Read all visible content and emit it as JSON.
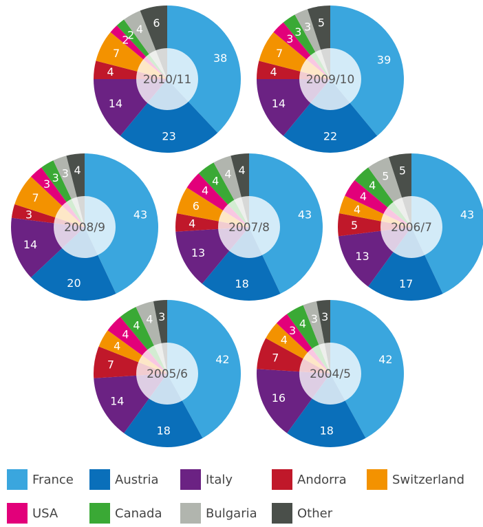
{
  "chart_data": [
    {
      "type": "pie",
      "title": "2010/11",
      "categories": [
        "France",
        "Austria",
        "Italy",
        "Andorra",
        "Switzerland",
        "USA",
        "Canada",
        "Bulgaria",
        "Other"
      ],
      "colors": [
        "#3aa6de",
        "#0a6fba",
        "#6b2283",
        "#c0182a",
        "#f39200",
        "#e2007a",
        "#3aa935",
        "#b1b5ae",
        "#4a4f4a"
      ],
      "values": [
        38,
        23,
        14,
        4,
        7,
        2,
        2,
        4,
        6
      ]
    },
    {
      "type": "pie",
      "title": "2009/10",
      "categories": [
        "France",
        "Austria",
        "Italy",
        "Andorra",
        "Switzerland",
        "USA",
        "Canada",
        "Bulgaria",
        "Other"
      ],
      "colors": [
        "#3aa6de",
        "#0a6fba",
        "#6b2283",
        "#c0182a",
        "#f39200",
        "#e2007a",
        "#3aa935",
        "#b1b5ae",
        "#4a4f4a"
      ],
      "values": [
        39,
        22,
        14,
        4,
        7,
        3,
        3,
        3,
        5
      ]
    },
    {
      "type": "pie",
      "title": "2008/9",
      "categories": [
        "France",
        "Austria",
        "Italy",
        "Andorra",
        "Switzerland",
        "USA",
        "Canada",
        "Bulgaria",
        "Other"
      ],
      "colors": [
        "#3aa6de",
        "#0a6fba",
        "#6b2283",
        "#c0182a",
        "#f39200",
        "#e2007a",
        "#3aa935",
        "#b1b5ae",
        "#4a4f4a"
      ],
      "values": [
        43,
        20,
        14,
        3,
        7,
        3,
        3,
        3,
        4
      ]
    },
    {
      "type": "pie",
      "title": "2007/8",
      "categories": [
        "France",
        "Austria",
        "Italy",
        "Andorra",
        "Switzerland",
        "USA",
        "Canada",
        "Bulgaria",
        "Other"
      ],
      "colors": [
        "#3aa6de",
        "#0a6fba",
        "#6b2283",
        "#c0182a",
        "#f39200",
        "#e2007a",
        "#3aa935",
        "#b1b5ae",
        "#4a4f4a"
      ],
      "values": [
        43,
        18,
        13,
        4,
        6,
        4,
        4,
        4,
        4
      ]
    },
    {
      "type": "pie",
      "title": "2006/7",
      "categories": [
        "France",
        "Austria",
        "Italy",
        "Andorra",
        "Switzerland",
        "USA",
        "Canada",
        "Bulgaria",
        "Other"
      ],
      "colors": [
        "#3aa6de",
        "#0a6fba",
        "#6b2283",
        "#c0182a",
        "#f39200",
        "#e2007a",
        "#3aa935",
        "#b1b5ae",
        "#4a4f4a"
      ],
      "values": [
        43,
        17,
        13,
        5,
        4,
        4,
        4,
        5,
        5
      ]
    },
    {
      "type": "pie",
      "title": "2005/6",
      "categories": [
        "France",
        "Austria",
        "Italy",
        "Andorra",
        "Switzerland",
        "USA",
        "Canada",
        "Bulgaria",
        "Other"
      ],
      "colors": [
        "#3aa6de",
        "#0a6fba",
        "#6b2283",
        "#c0182a",
        "#f39200",
        "#e2007a",
        "#3aa935",
        "#b1b5ae",
        "#4a4f4a"
      ],
      "values": [
        42,
        18,
        14,
        7,
        4,
        4,
        4,
        4,
        3
      ]
    },
    {
      "type": "pie",
      "title": "2004/5",
      "categories": [
        "France",
        "Austria",
        "Italy",
        "Andorra",
        "Switzerland",
        "USA",
        "Canada",
        "Bulgaria",
        "Other"
      ],
      "colors": [
        "#3aa6de",
        "#0a6fba",
        "#6b2283",
        "#c0182a",
        "#f39200",
        "#e2007a",
        "#3aa935",
        "#b1b5ae",
        "#4a4f4a"
      ],
      "values": [
        42,
        18,
        16,
        7,
        4,
        3,
        4,
        3,
        3
      ]
    }
  ]
}
